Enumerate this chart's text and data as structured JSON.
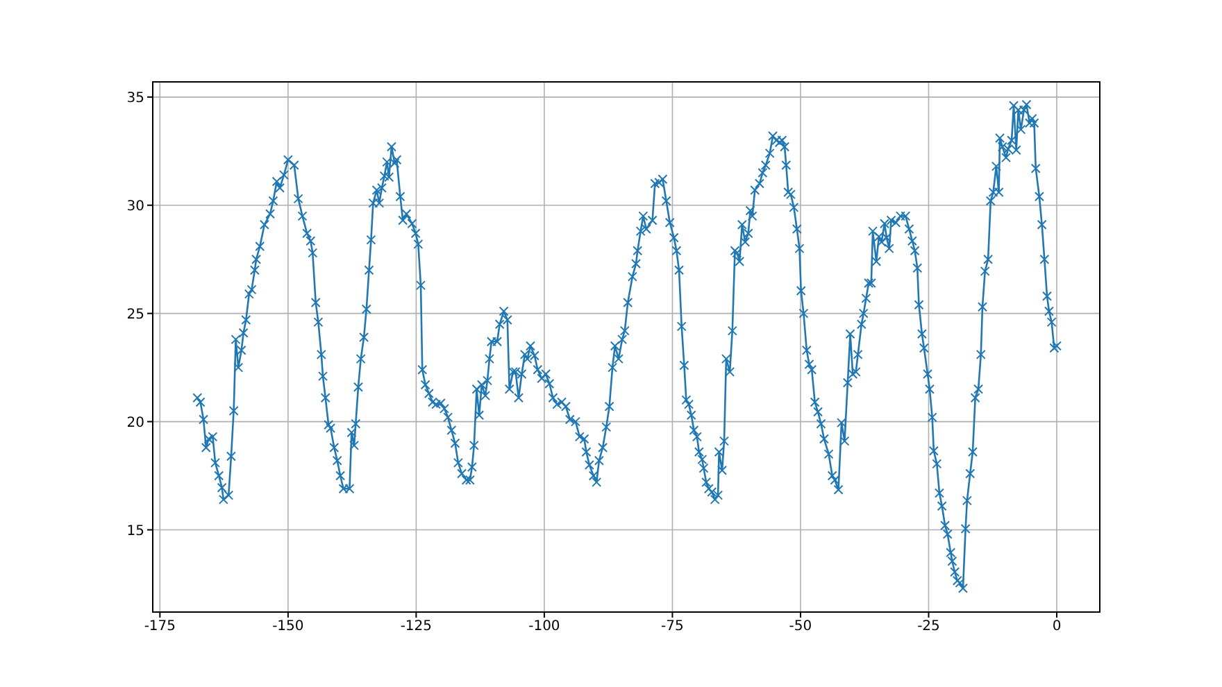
{
  "chart_data": {
    "type": "line",
    "marker": "cross",
    "grid": true,
    "line_style": "solid",
    "xlim": [
      -176.4,
      8.4
    ],
    "ylim": [
      11.2,
      35.7
    ],
    "xticks": [
      -175,
      -150,
      -125,
      -100,
      -75,
      -50,
      -25,
      0
    ],
    "yticks": [
      15,
      20,
      25,
      30,
      35
    ],
    "series": [
      {
        "color": "#1f77b4",
        "x": [
          -167.7,
          -167.1,
          -166.5,
          -166.0,
          -165.5,
          -164.7,
          -164.2,
          -163.5,
          -162.9,
          -162.6,
          -161.6,
          -161.1,
          -160.6,
          -160.2,
          -159.7,
          -159.1,
          -158.7,
          -158.2,
          -157.6,
          -157.1,
          -156.5,
          -156.2,
          -155.5,
          -154.6,
          -153.5,
          -152.9,
          -152.2,
          -151.6,
          -150.8,
          -150.0,
          -148.8,
          -148.0,
          -147.2,
          -146.3,
          -145.6,
          -145.2,
          -144.6,
          -144.1,
          -143.5,
          -143.2,
          -142.7,
          -142.1,
          -141.7,
          -141.0,
          -140.4,
          -139.8,
          -139.2,
          -138.0,
          -137.6,
          -137.1,
          -136.8,
          -136.3,
          -135.8,
          -135.2,
          -134.7,
          -134.2,
          -133.8,
          -133.4,
          -132.7,
          -132.2,
          -131.7,
          -131.2,
          -130.7,
          -130.3,
          -129.8,
          -129.2,
          -128.8,
          -128.1,
          -127.6,
          -126.9,
          -125.8,
          -125.1,
          -124.6,
          -124.1,
          -123.8,
          -123.2,
          -122.5,
          -121.8,
          -121.1,
          -120.2,
          -119.5,
          -118.8,
          -118.1,
          -117.4,
          -116.8,
          -116.1,
          -115.2,
          -114.5,
          -114.1,
          -113.7,
          -113.2,
          -112.7,
          -112.2,
          -111.5,
          -111.1,
          -110.7,
          -110.3,
          -109.2,
          -108.7,
          -107.9,
          -107.2,
          -106.8,
          -106.1,
          -105.6,
          -105.0,
          -104.4,
          -103.8,
          -103.3,
          -102.7,
          -101.9,
          -101.3,
          -100.5,
          -99.7,
          -99.0,
          -98.3,
          -97.5,
          -96.6,
          -95.8,
          -95.0,
          -93.9,
          -93.1,
          -92.2,
          -91.8,
          -91.2,
          -90.4,
          -89.8,
          -89.3,
          -88.6,
          -87.9,
          -87.3,
          -86.7,
          -86.2,
          -85.5,
          -84.8,
          -84.3,
          -83.7,
          -82.8,
          -82.1,
          -81.8,
          -81.2,
          -80.7,
          -80.1,
          -78.9,
          -78.4,
          -77.6,
          -76.9,
          -76.2,
          -75.5,
          -74.7,
          -74.2,
          -73.7,
          -73.2,
          -72.7,
          -72.3,
          -71.8,
          -71.3,
          -70.8,
          -70.2,
          -69.8,
          -69.2,
          -68.9,
          -68.4,
          -67.9,
          -67.3,
          -66.7,
          -66.1,
          -65.9,
          -65.3,
          -64.9,
          -64.5,
          -63.8,
          -63.3,
          -62.8,
          -62.4,
          -61.9,
          -61.4,
          -60.8,
          -60.2,
          -59.8,
          -59.4,
          -58.9,
          -58.0,
          -57.4,
          -56.8,
          -56.0,
          -55.4,
          -54.7,
          -54.1,
          -53.6,
          -53.1,
          -52.8,
          -52.4,
          -51.9,
          -51.3,
          -50.7,
          -50.2,
          -49.9,
          -49.4,
          -48.8,
          -48.3,
          -47.8,
          -47.2,
          -46.6,
          -46.0,
          -45.4,
          -44.5,
          -43.8,
          -43.3,
          -42.6,
          -42.0,
          -41.4,
          -40.8,
          -40.3,
          -39.8,
          -39.2,
          -38.8,
          -38.1,
          -37.7,
          -37.2,
          -36.7,
          -36.2,
          -35.9,
          -35.2,
          -34.7,
          -34.2,
          -33.6,
          -33.2,
          -32.7,
          -32.3,
          -31.4,
          -30.5,
          -29.5,
          -28.8,
          -28.2,
          -27.7,
          -27.2,
          -26.9,
          -26.3,
          -25.9,
          -25.2,
          -24.8,
          -24.3,
          -24.0,
          -23.4,
          -22.9,
          -22.4,
          -21.8,
          -21.3,
          -20.7,
          -20.4,
          -19.9,
          -19.4,
          -18.9,
          -18.3,
          -17.8,
          -17.5,
          -16.9,
          -16.4,
          -15.9,
          -15.3,
          -14.8,
          -14.5,
          -14.0,
          -13.4,
          -12.9,
          -12.4,
          -11.8,
          -11.3,
          -11.1,
          -10.6,
          -9.9,
          -9.5,
          -8.8,
          -8.4,
          -7.9,
          -7.5,
          -7.0,
          -6.4,
          -5.9,
          -5.3,
          -4.8,
          -4.4,
          -4.1,
          -3.4,
          -2.9,
          -2.4,
          -1.9,
          -1.5,
          -1.0,
          -0.5,
          0.0
        ],
        "values": [
          21.1,
          20.9,
          20.1,
          18.8,
          19.2,
          19.3,
          18.1,
          17.5,
          16.95,
          16.4,
          16.6,
          18.4,
          20.5,
          23.8,
          22.5,
          23.3,
          24.1,
          24.7,
          25.9,
          26.1,
          27.0,
          27.5,
          28.1,
          29.1,
          29.6,
          30.2,
          31.1,
          30.8,
          31.4,
          32.1,
          31.85,
          30.3,
          29.5,
          28.7,
          28.35,
          27.8,
          25.5,
          24.6,
          23.1,
          22.1,
          21.1,
          19.85,
          19.7,
          18.8,
          18.2,
          17.5,
          16.9,
          16.9,
          19.5,
          18.9,
          19.9,
          21.6,
          22.9,
          23.9,
          25.2,
          27.0,
          28.4,
          30.1,
          30.7,
          30.1,
          30.8,
          31.35,
          32.0,
          31.3,
          32.7,
          31.95,
          32.1,
          30.4,
          29.3,
          29.6,
          29.15,
          28.7,
          28.2,
          26.3,
          22.4,
          21.7,
          21.3,
          20.9,
          20.8,
          20.85,
          20.6,
          20.2,
          19.6,
          19.0,
          18.1,
          17.6,
          17.3,
          17.3,
          17.9,
          18.9,
          21.5,
          20.3,
          21.7,
          21.2,
          21.9,
          22.9,
          23.7,
          23.7,
          24.5,
          25.1,
          24.7,
          21.5,
          22.3,
          22.3,
          21.1,
          22.2,
          23.1,
          22.9,
          23.5,
          23.05,
          22.4,
          22.0,
          22.2,
          21.75,
          21.1,
          20.8,
          20.9,
          20.7,
          20.1,
          20.0,
          19.3,
          19.2,
          18.6,
          18.0,
          17.5,
          17.2,
          18.2,
          18.8,
          19.75,
          20.7,
          22.5,
          23.5,
          22.9,
          23.8,
          24.2,
          25.5,
          26.7,
          27.3,
          27.9,
          28.8,
          29.5,
          28.9,
          29.3,
          31.0,
          31.05,
          31.2,
          30.2,
          29.2,
          28.5,
          27.9,
          27.0,
          24.4,
          22.6,
          21.0,
          20.8,
          20.3,
          19.6,
          19.3,
          18.6,
          18.25,
          17.85,
          17.2,
          16.9,
          16.75,
          16.4,
          16.6,
          18.6,
          17.75,
          19.1,
          22.9,
          22.3,
          24.2,
          27.9,
          27.8,
          27.4,
          29.1,
          28.3,
          28.7,
          29.75,
          29.5,
          30.7,
          31.0,
          31.5,
          31.85,
          32.4,
          33.2,
          33.0,
          32.9,
          33.0,
          32.7,
          31.85,
          30.6,
          30.5,
          29.9,
          28.9,
          28.0,
          26.05,
          25.0,
          23.3,
          22.65,
          22.4,
          20.9,
          20.45,
          19.9,
          19.2,
          18.5,
          17.5,
          17.3,
          16.85,
          19.95,
          19.1,
          21.8,
          24.05,
          22.2,
          22.3,
          23.1,
          24.5,
          25.0,
          25.7,
          26.4,
          26.4,
          28.8,
          27.4,
          28.55,
          28.3,
          29.15,
          28.5,
          28.0,
          29.3,
          29.2,
          29.5,
          29.5,
          28.9,
          28.35,
          27.9,
          27.1,
          25.4,
          24.05,
          23.4,
          22.2,
          21.5,
          20.2,
          18.65,
          18.05,
          16.7,
          16.1,
          15.2,
          14.8,
          13.95,
          13.55,
          13.05,
          12.65,
          12.55,
          12.3,
          15.05,
          16.35,
          17.6,
          18.6,
          21.1,
          21.5,
          23.1,
          25.3,
          26.95,
          27.5,
          30.2,
          30.6,
          31.8,
          30.6,
          33.1,
          32.7,
          32.2,
          32.6,
          33.0,
          34.6,
          32.55,
          34.4,
          33.5,
          34.4,
          34.65,
          33.8,
          34.0,
          33.8,
          31.7,
          30.4,
          29.1,
          27.5,
          25.8,
          25.1,
          24.6,
          23.4,
          23.5
        ]
      }
    ]
  }
}
